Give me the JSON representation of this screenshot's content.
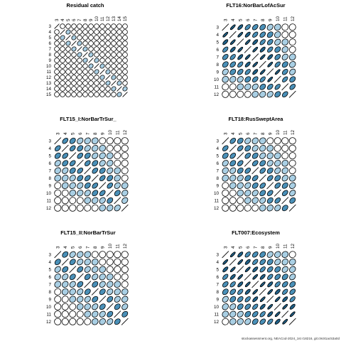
{
  "chart_data": [
    {
      "type": "heatmap",
      "title": "Residual catch",
      "ages": [
        "3",
        "4",
        "5",
        "6",
        "7",
        "8",
        "9",
        "10",
        "11",
        "12",
        "13",
        "14",
        "15"
      ],
      "values": [
        [
          1.0,
          -0.05,
          0.1,
          0.05,
          0,
          0.05,
          0,
          0,
          0,
          0,
          0,
          0,
          0
        ],
        [
          -0.05,
          1.0,
          0.3,
          0.1,
          0.05,
          0,
          0,
          0,
          0,
          0,
          0,
          0,
          0
        ],
        [
          0.1,
          0.3,
          1.0,
          0.3,
          0.1,
          0,
          0,
          0,
          0,
          0,
          0,
          0,
          0
        ],
        [
          0.05,
          0.1,
          0.3,
          1.0,
          0.3,
          0.1,
          0,
          0,
          0,
          0,
          0,
          0,
          0
        ],
        [
          0,
          0.05,
          0.1,
          0.3,
          1.0,
          0.3,
          0.1,
          0,
          0,
          0,
          0,
          0,
          0
        ],
        [
          0.05,
          0,
          0,
          0.1,
          0.3,
          1.0,
          0.3,
          0.1,
          0,
          0,
          0,
          0,
          0
        ],
        [
          0,
          0,
          0,
          0,
          0.1,
          0.3,
          1.0,
          0.3,
          0.1,
          0,
          0,
          0,
          0
        ],
        [
          0,
          0,
          0,
          0,
          0,
          0.1,
          0.3,
          1.0,
          0.3,
          0.1,
          0,
          0,
          0
        ],
        [
          0,
          0,
          0,
          0,
          0,
          0,
          0.1,
          0.3,
          1.0,
          0.3,
          0.1,
          0,
          0
        ],
        [
          0,
          0,
          0,
          0,
          0,
          0,
          0,
          0.1,
          0.3,
          1.0,
          0.3,
          0.1,
          0
        ],
        [
          0,
          0,
          0,
          0,
          0,
          0,
          0,
          0,
          0.1,
          0.3,
          1.0,
          0.3,
          0.1
        ],
        [
          0,
          0,
          0,
          0,
          0,
          0,
          0,
          0,
          0,
          0.1,
          0.3,
          1.0,
          0.3
        ],
        [
          0,
          0,
          0,
          0,
          0,
          0,
          0,
          0,
          0,
          0,
          0.1,
          0.3,
          1.0
        ]
      ]
    },
    {
      "type": "heatmap",
      "title": "FLT16:NorBarLofAcSur",
      "ages": [
        "3",
        "4",
        "5",
        "6",
        "7",
        "8",
        "9",
        "10",
        "11",
        "12"
      ],
      "values": [
        [
          1.0,
          0.9,
          0.8,
          0.7,
          0.6,
          0.5,
          0.4,
          0.2,
          0.1,
          0.05
        ],
        [
          0.9,
          1.0,
          0.9,
          0.8,
          0.7,
          0.6,
          0.5,
          0.3,
          0.15,
          0.05
        ],
        [
          0.8,
          0.9,
          1.0,
          0.9,
          0.8,
          0.7,
          0.6,
          0.4,
          0.2,
          0.1
        ],
        [
          0.7,
          0.8,
          0.9,
          1.0,
          0.9,
          0.8,
          0.7,
          0.5,
          0.3,
          0.15
        ],
        [
          0.6,
          0.7,
          0.8,
          0.9,
          1.0,
          0.9,
          0.8,
          0.6,
          0.4,
          0.2
        ],
        [
          0.5,
          0.6,
          0.7,
          0.8,
          0.9,
          1.0,
          0.9,
          0.7,
          0.5,
          0.3
        ],
        [
          0.4,
          0.5,
          0.6,
          0.7,
          0.8,
          0.9,
          1.0,
          0.9,
          0.6,
          0.4
        ],
        [
          0.2,
          0.3,
          0.4,
          0.5,
          0.6,
          0.7,
          0.9,
          1.0,
          0.7,
          0.5
        ],
        [
          0.1,
          0.15,
          0.2,
          0.3,
          0.4,
          0.5,
          0.6,
          0.7,
          1.0,
          0.6
        ],
        [
          0.05,
          0.05,
          0.1,
          0.15,
          0.2,
          0.3,
          0.4,
          0.5,
          0.6,
          1.0
        ]
      ]
    },
    {
      "type": "heatmap",
      "title": "FLT15_I:NorBarTrSur_",
      "ages": [
        "3",
        "4",
        "5",
        "6",
        "7",
        "8",
        "9",
        "10",
        "11",
        "12"
      ],
      "values": [
        [
          1.0,
          0.6,
          0.5,
          0.4,
          0.3,
          0.2,
          0.1,
          0.05,
          0,
          0
        ],
        [
          0.6,
          1.0,
          0.6,
          0.5,
          0.4,
          0.3,
          0.2,
          0.1,
          0,
          0
        ],
        [
          0.5,
          0.6,
          1.0,
          0.6,
          0.5,
          0.4,
          0.3,
          0.2,
          0.1,
          0
        ],
        [
          0.4,
          0.5,
          0.6,
          1.0,
          0.6,
          0.5,
          0.4,
          0.3,
          0.1,
          0.05
        ],
        [
          0.3,
          0.4,
          0.5,
          0.6,
          1.0,
          0.6,
          0.5,
          0.4,
          0.2,
          0.1
        ],
        [
          0.2,
          0.3,
          0.4,
          0.5,
          0.6,
          1.0,
          0.6,
          0.5,
          0.3,
          0.15
        ],
        [
          0.1,
          0.2,
          0.3,
          0.4,
          0.5,
          0.6,
          1.0,
          0.6,
          0.4,
          0.2
        ],
        [
          0.05,
          0.1,
          0.2,
          0.3,
          0.4,
          0.5,
          0.6,
          1.0,
          0.5,
          0.3
        ],
        [
          0,
          0,
          0.1,
          0.1,
          0.2,
          0.3,
          0.4,
          0.5,
          1.0,
          0.4
        ],
        [
          0,
          0,
          0,
          0.05,
          0.1,
          0.15,
          0.2,
          0.3,
          0.4,
          1.0
        ]
      ]
    },
    {
      "type": "heatmap",
      "title": "FLT18:RusSweptArea",
      "ages": [
        "3",
        "4",
        "5",
        "6",
        "7",
        "8",
        "9",
        "10",
        "11",
        "12"
      ],
      "values": [
        [
          1.0,
          0.6,
          0.5,
          0.4,
          0.3,
          0.2,
          0.1,
          0.05,
          0,
          0
        ],
        [
          0.6,
          1.0,
          0.6,
          0.5,
          0.4,
          0.3,
          0.2,
          0.1,
          0.05,
          0
        ],
        [
          0.5,
          0.6,
          1.0,
          0.6,
          0.5,
          0.4,
          0.3,
          0.2,
          0.1,
          0.05
        ],
        [
          0.4,
          0.5,
          0.6,
          1.0,
          0.6,
          0.5,
          0.4,
          0.3,
          0.2,
          0.1
        ],
        [
          0.3,
          0.4,
          0.5,
          0.6,
          1.0,
          0.6,
          0.5,
          0.4,
          0.3,
          0.15
        ],
        [
          0.2,
          0.3,
          0.4,
          0.5,
          0.6,
          1.0,
          0.6,
          0.5,
          0.4,
          0.2
        ],
        [
          0.1,
          0.2,
          0.3,
          0.4,
          0.5,
          0.6,
          1.0,
          0.6,
          0.5,
          0.3
        ],
        [
          0.05,
          0.1,
          0.2,
          0.3,
          0.4,
          0.5,
          0.6,
          1.0,
          0.6,
          0.4
        ],
        [
          0,
          0.05,
          0.1,
          0.2,
          0.3,
          0.4,
          0.5,
          0.6,
          1.0,
          0.5
        ],
        [
          0,
          0,
          0.05,
          0.1,
          0.15,
          0.2,
          0.3,
          0.4,
          0.5,
          1.0
        ]
      ]
    },
    {
      "type": "heatmap",
      "title": "FLT15_II:NorBarTrSur",
      "ages": [
        "3",
        "4",
        "5",
        "6",
        "7",
        "8",
        "9",
        "10",
        "11",
        "12"
      ],
      "values": [
        [
          1.0,
          0.5,
          0.4,
          0.3,
          0.2,
          0.1,
          0.05,
          0,
          0,
          0
        ],
        [
          0.5,
          1.0,
          0.5,
          0.4,
          0.3,
          0.2,
          0.1,
          0.05,
          0,
          0
        ],
        [
          0.4,
          0.5,
          1.0,
          0.5,
          0.4,
          0.3,
          0.2,
          0.1,
          0.05,
          0
        ],
        [
          0.3,
          0.4,
          0.5,
          1.0,
          0.5,
          0.4,
          0.3,
          0.2,
          0.1,
          0.05
        ],
        [
          0.2,
          0.3,
          0.4,
          0.5,
          1.0,
          0.5,
          0.4,
          0.3,
          0.2,
          0.1
        ],
        [
          0.1,
          0.2,
          0.3,
          0.4,
          0.5,
          1.0,
          0.5,
          0.4,
          0.3,
          0.2
        ],
        [
          0.05,
          0.1,
          0.2,
          0.3,
          0.4,
          0.5,
          1.0,
          0.5,
          0.4,
          0.3
        ],
        [
          0,
          0.05,
          0.1,
          0.2,
          0.3,
          0.4,
          0.5,
          1.0,
          0.5,
          0.4
        ],
        [
          0,
          0,
          0.05,
          0.1,
          0.2,
          0.3,
          0.4,
          0.5,
          1.0,
          0.5
        ],
        [
          0,
          0,
          0,
          0.05,
          0.1,
          0.2,
          0.3,
          0.4,
          0.5,
          1.0
        ]
      ]
    },
    {
      "type": "heatmap",
      "title": "FLT007:Ecosystem",
      "ages": [
        "3",
        "4",
        "5",
        "6",
        "7",
        "8",
        "9",
        "10",
        "11",
        "12"
      ],
      "values": [
        [
          1.0,
          0.9,
          0.8,
          0.7,
          0.6,
          0.5,
          0.4,
          0.3,
          0.2,
          0.1
        ],
        [
          0.9,
          1.0,
          0.9,
          0.8,
          0.7,
          0.6,
          0.5,
          0.4,
          0.3,
          0.2
        ],
        [
          0.8,
          0.9,
          1.0,
          0.9,
          0.8,
          0.7,
          0.6,
          0.5,
          0.4,
          0.3
        ],
        [
          0.7,
          0.8,
          0.9,
          1.0,
          0.9,
          0.8,
          0.7,
          0.6,
          0.5,
          0.4
        ],
        [
          0.6,
          0.7,
          0.8,
          0.9,
          1.0,
          0.9,
          0.8,
          0.7,
          0.6,
          0.5
        ],
        [
          0.5,
          0.6,
          0.7,
          0.8,
          0.9,
          1.0,
          0.9,
          0.8,
          0.7,
          0.6
        ],
        [
          0.4,
          0.5,
          0.6,
          0.7,
          0.8,
          0.9,
          1.0,
          0.9,
          0.8,
          0.7
        ],
        [
          0.3,
          0.4,
          0.5,
          0.6,
          0.7,
          0.8,
          0.9,
          1.0,
          0.9,
          0.8
        ],
        [
          0.2,
          0.3,
          0.4,
          0.5,
          0.6,
          0.7,
          0.8,
          0.9,
          1.0,
          0.9
        ],
        [
          0.1,
          0.2,
          0.3,
          0.4,
          0.5,
          0.6,
          0.7,
          0.8,
          0.9,
          1.0
        ]
      ]
    }
  ],
  "footer": "stockassessment.org, NEACod-2024_1st r18216, git:c9c81ac53a0d",
  "colors": {
    "high": "#1f5f86",
    "mid": "#4a90b8",
    "low": "#a9cfe4",
    "zero": "#ffffff",
    "outline": "#000000"
  }
}
